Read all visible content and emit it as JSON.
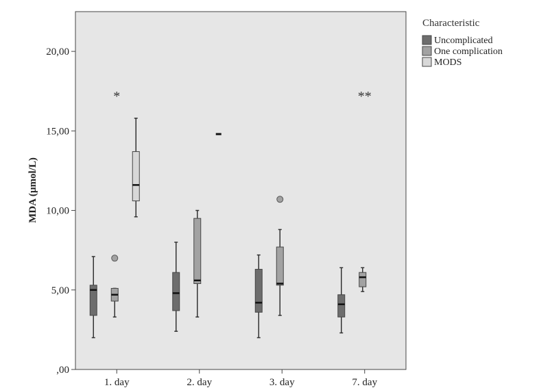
{
  "chart_data": {
    "type": "box",
    "title": "",
    "xlabel": "",
    "ylabel": "MDA (µmol/L)",
    "ylim": [
      0,
      22.5
    ],
    "yticks": [
      0,
      5,
      10,
      15,
      20
    ],
    "ytick_labels": [
      ",00",
      "5,00",
      "10,00",
      "15,00",
      "20,00"
    ],
    "categories": [
      "1. day",
      "2. day",
      "3. day",
      "7. day"
    ],
    "legend": {
      "title": "Characteristic",
      "position": "top-right outside",
      "entries": [
        "Uncomplicated",
        "One complication",
        "MODS"
      ]
    },
    "colors": {
      "Uncomplicated": "#6d6d6d",
      "One complication": "#a2a2a2",
      "MODS": "#d8d8d8",
      "plot_background": "#e6e6e6"
    },
    "series": [
      {
        "name": "Uncomplicated",
        "boxes": [
          {
            "category": "1. day",
            "min": 2.0,
            "q1": 3.4,
            "median": 5.0,
            "q3": 5.3,
            "max": 7.1,
            "outliers": []
          },
          {
            "category": "2. day",
            "min": 2.4,
            "q1": 3.7,
            "median": 4.8,
            "q3": 6.1,
            "max": 8.0,
            "outliers": []
          },
          {
            "category": "3. day",
            "min": 2.0,
            "q1": 3.6,
            "median": 4.2,
            "q3": 6.3,
            "max": 7.2,
            "outliers": []
          },
          {
            "category": "7. day",
            "min": 2.3,
            "q1": 3.3,
            "median": 4.1,
            "q3": 4.7,
            "max": 6.4,
            "outliers": []
          }
        ]
      },
      {
        "name": "One complication",
        "boxes": [
          {
            "category": "1. day",
            "min": 3.3,
            "q1": 4.3,
            "median": 4.7,
            "q3": 5.1,
            "max": 5.1,
            "outliers": [
              7.0
            ]
          },
          {
            "category": "2. day",
            "min": 3.3,
            "q1": 5.4,
            "median": 5.6,
            "q3": 9.5,
            "max": 10.0,
            "outliers": []
          },
          {
            "category": "3. day",
            "min": 3.4,
            "q1": 5.3,
            "median": 5.4,
            "q3": 7.7,
            "max": 8.8,
            "outliers": [
              10.7
            ]
          },
          {
            "category": "7. day",
            "min": 4.9,
            "q1": 5.2,
            "median": 5.8,
            "q3": 6.1,
            "max": 6.4,
            "outliers": []
          }
        ]
      },
      {
        "name": "MODS",
        "boxes": [
          {
            "category": "1. day",
            "min": 9.6,
            "q1": 10.6,
            "median": 11.6,
            "q3": 13.7,
            "max": 15.8,
            "outliers": []
          },
          {
            "category": "2. day",
            "min": 14.8,
            "q1": 14.8,
            "median": 14.8,
            "q3": 14.8,
            "max": 14.8,
            "outliers": []
          }
        ]
      }
    ],
    "annotations": [
      {
        "category": "1. day",
        "text": "*",
        "y": 17.5
      },
      {
        "category": "7. day",
        "text": "**",
        "y": 17.5
      }
    ]
  }
}
